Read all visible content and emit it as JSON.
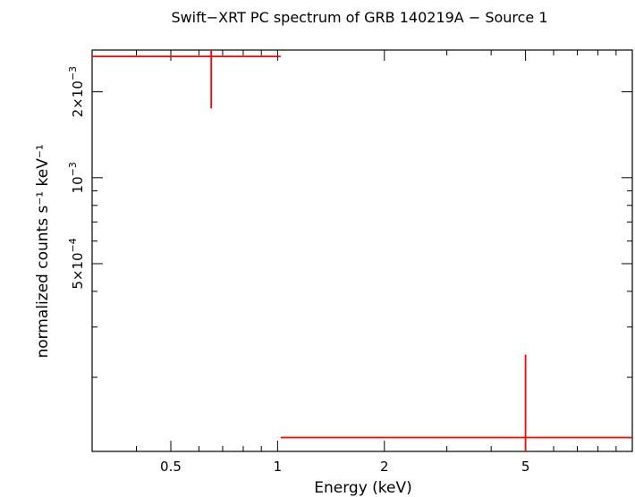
{
  "chart_data": {
    "type": "scatter",
    "title": "Swift−XRT PC spectrum of GRB 140219A − Source 1",
    "xlabel": "Energy (keV)",
    "ylabel": "normalized counts s⁻¹ keV⁻¹",
    "x_scale": "log",
    "y_scale": "log",
    "xlim": [
      0.3,
      10
    ],
    "ylim": [
      0.00011,
      0.0028
    ],
    "x_ticks": [
      {
        "value": 0.5,
        "label": "0.5"
      },
      {
        "value": 1,
        "label": "1"
      },
      {
        "value": 2,
        "label": "2"
      },
      {
        "value": 5,
        "label": "5"
      }
    ],
    "y_ticks": [
      {
        "value": 0.0005,
        "mantissa": "5×10",
        "exp": "−4"
      },
      {
        "value": 0.001,
        "mantissa": "10",
        "exp": "−3"
      },
      {
        "value": 0.002,
        "mantissa": "2×10",
        "exp": "−3"
      }
    ],
    "series": [
      {
        "color": "#ff0000",
        "points": [
          {
            "x": 0.65,
            "xlo": 0.3,
            "xhi": 1.02,
            "y": 0.00266,
            "ylo": 0.00175,
            "yhi": 0.0028
          },
          {
            "x": 5.0,
            "xlo": 1.02,
            "xhi": 10,
            "y": 0.000123,
            "ylo": 0.00011,
            "yhi": 0.00024
          }
        ]
      }
    ]
  }
}
